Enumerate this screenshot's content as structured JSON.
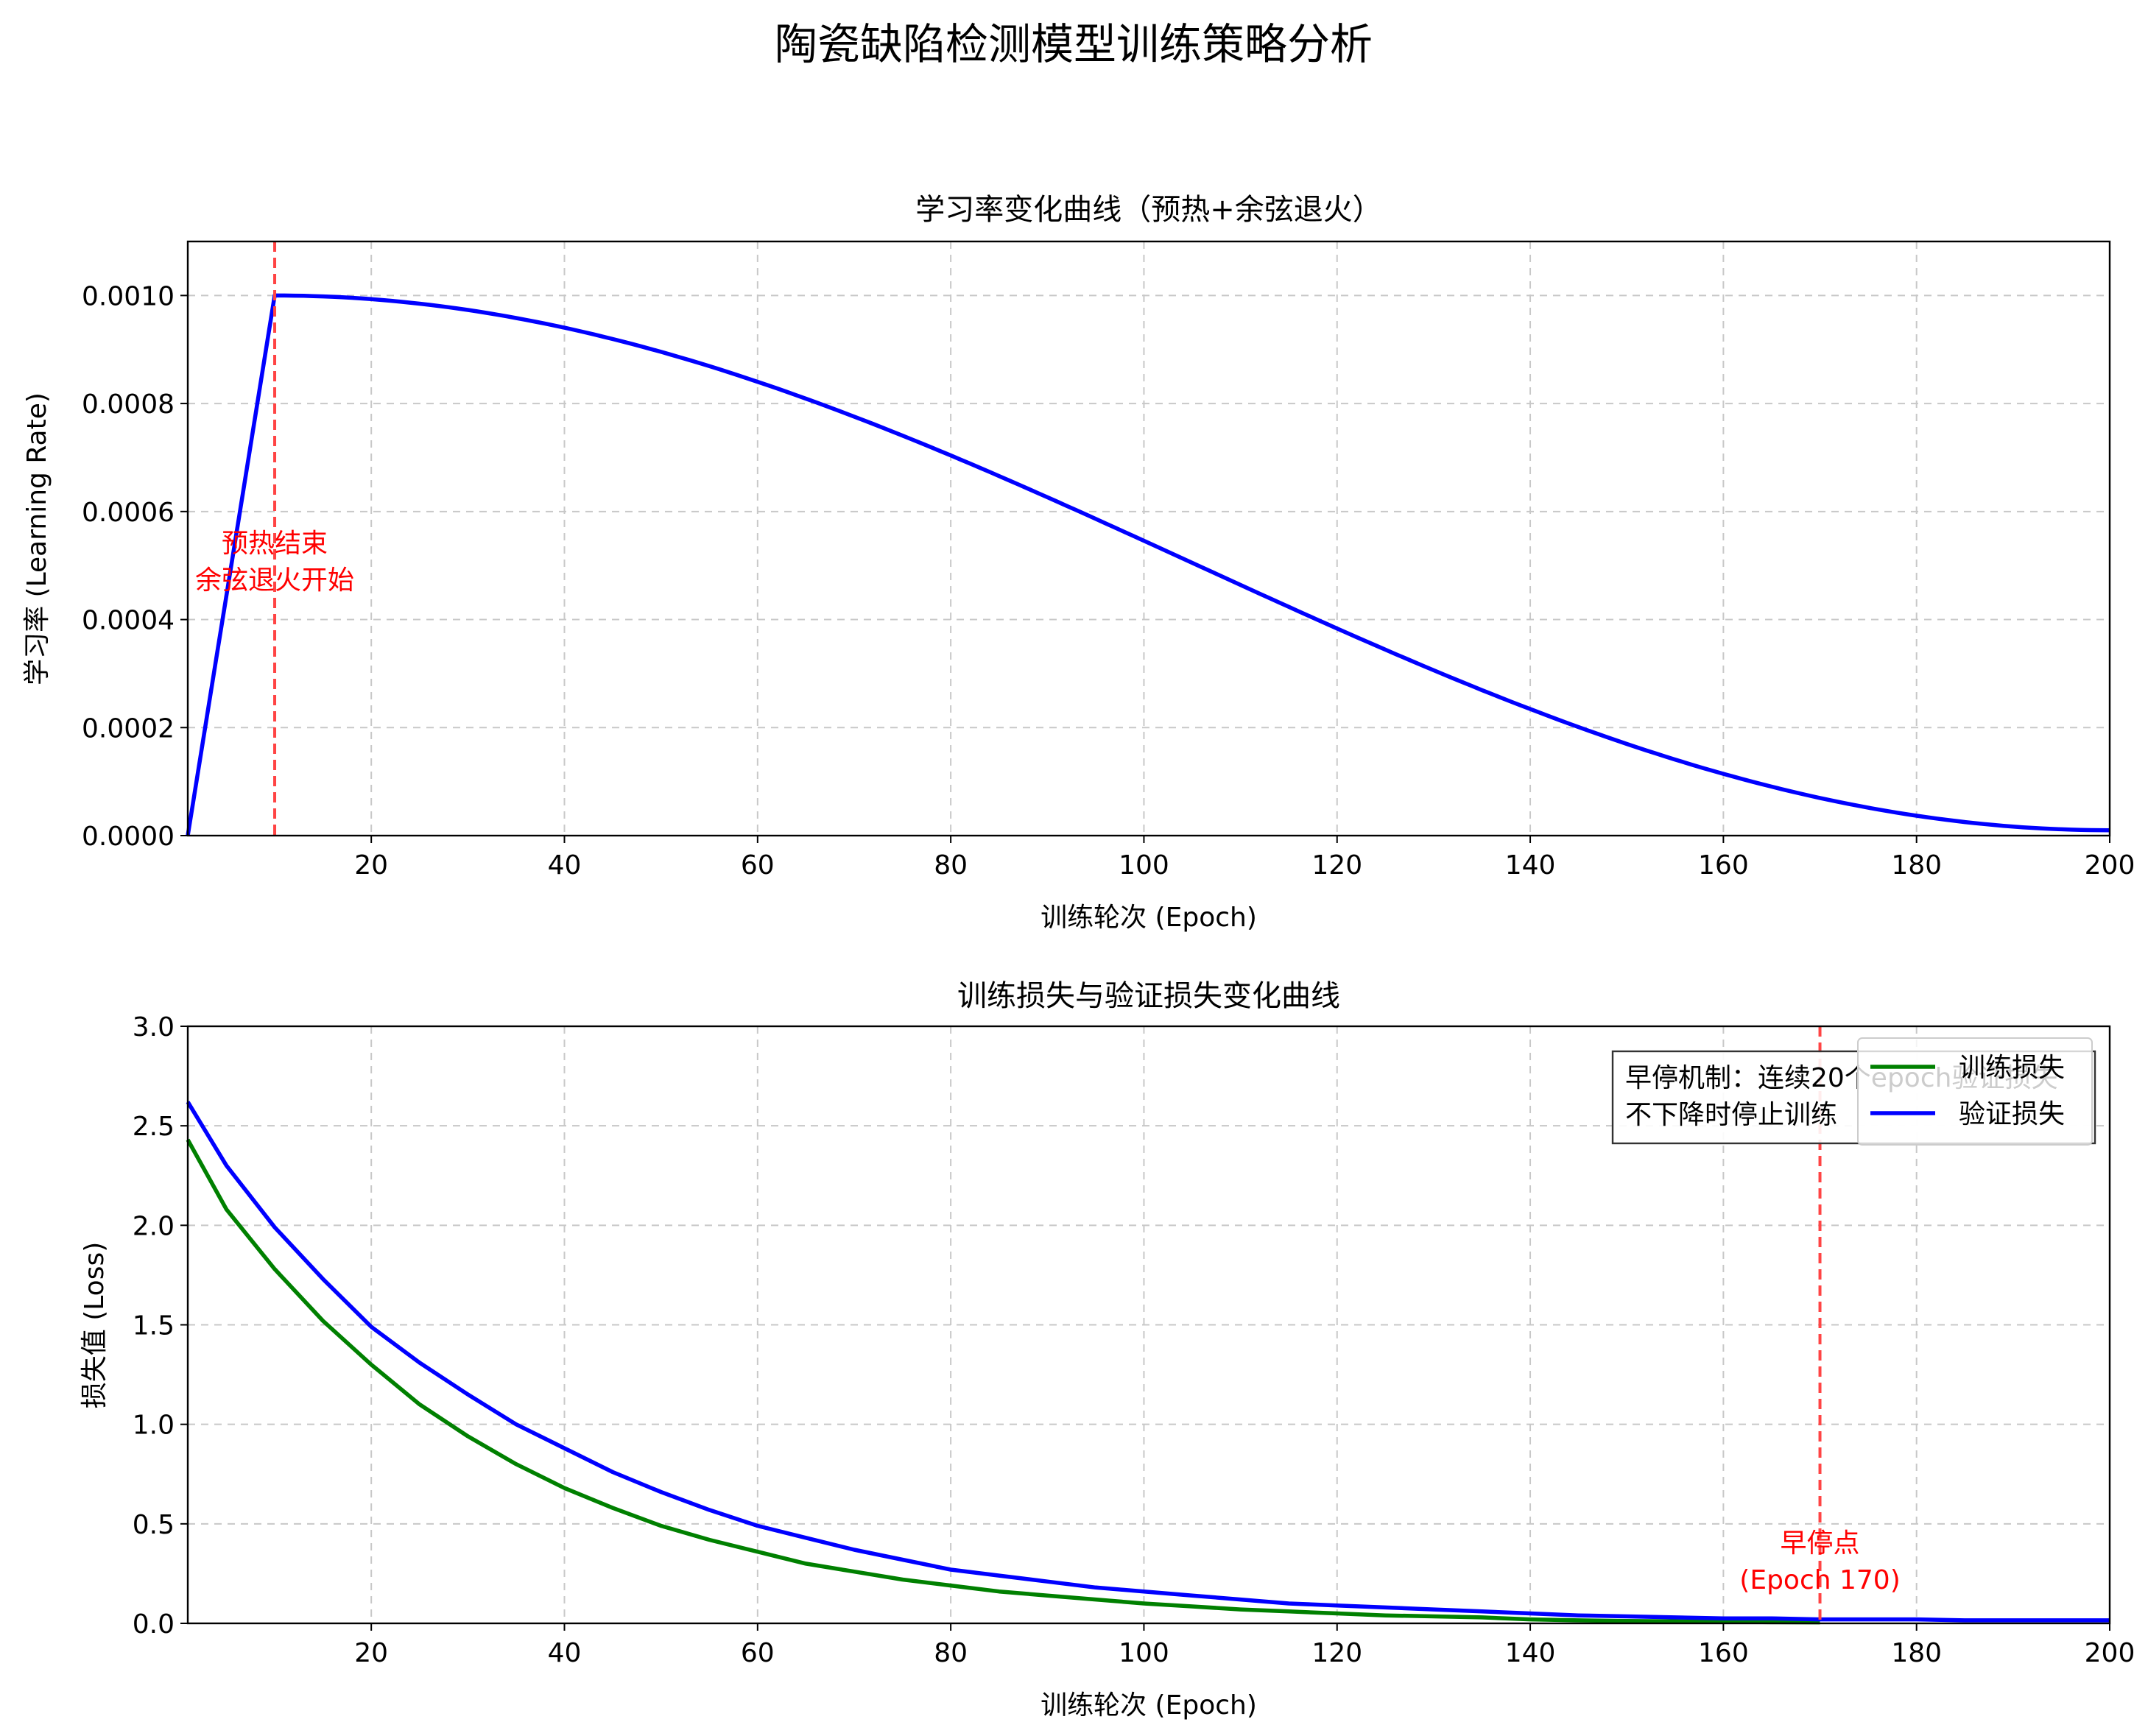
{
  "figure": {
    "title": "陶瓷缺陷检测模型训练策略分析"
  },
  "colors": {
    "lr_line": "#0000ff",
    "train_line": "#008000",
    "val_line": "#0000ff",
    "marker_line": "#ff4444",
    "annotation_text": "#ff0000",
    "grid": "#c8c8c8"
  },
  "chart_data": [
    {
      "type": "line",
      "title": "学习率变化曲线（预热+余弦退火）",
      "xlabel": "训练轮次 (Epoch)",
      "ylabel": "学习率 (Learning Rate)",
      "xlim": [
        1,
        200
      ],
      "ylim": [
        0,
        0.0011
      ],
      "xticks": [
        20,
        40,
        60,
        80,
        100,
        120,
        140,
        160,
        180,
        200
      ],
      "yticks": [
        "0.0000",
        "0.0002",
        "0.0004",
        "0.0006",
        "0.0008",
        "0.0010"
      ],
      "grid": true,
      "schedule": {
        "warmup_epochs": 10,
        "max_lr": 0.001,
        "min_lr": 1e-05
      },
      "series": [
        {
          "x": [
            1,
            10,
            15,
            20,
            25,
            30,
            35,
            40,
            45,
            50,
            55,
            60,
            65,
            70,
            75,
            80,
            85,
            90,
            95,
            100,
            105,
            110,
            115,
            120,
            125,
            130,
            135,
            140,
            145,
            150,
            155,
            160,
            165,
            170,
            175,
            180,
            185,
            190,
            195,
            200
          ],
          "values": [
            0.0,
            0.001,
            0.000998,
            0.000993,
            0.000985,
            0.000974,
            0.000959,
            0.000942,
            0.000922,
            0.000899,
            0.000874,
            0.000846,
            0.000816,
            0.000784,
            0.000751,
            0.000716,
            0.00068,
            0.000643,
            0.000605,
            0.000567,
            0.000529,
            0.000491,
            0.000453,
            0.000416,
            0.00038,
            0.000344,
            0.00031,
            0.000277,
            0.000246,
            0.000216,
            0.000188,
            0.000162,
            0.000138,
            0.000116,
            9.7e-05,
            8e-05,
            6.5e-05,
            5.3e-05,
            4.3e-05,
            1e-05
          ]
        }
      ],
      "markers": [
        {
          "x": 10,
          "label_lines": [
            "预热结束",
            "余弦退火开始"
          ]
        }
      ]
    },
    {
      "type": "line",
      "title": "训练损失与验证损失变化曲线",
      "xlabel": "训练轮次 (Epoch)",
      "ylabel": "损失值 (Loss)",
      "xlim": [
        1,
        200
      ],
      "ylim": [
        0,
        3.0
      ],
      "xticks": [
        20,
        40,
        60,
        80,
        100,
        120,
        140,
        160,
        180,
        200
      ],
      "yticks": [
        "0.0",
        "0.5",
        "1.0",
        "1.5",
        "2.0",
        "2.5",
        "3.0"
      ],
      "grid": true,
      "legend": "top-right",
      "series": [
        {
          "name": "训练损失",
          "x": [
            1,
            5,
            10,
            15,
            20,
            25,
            30,
            35,
            40,
            45,
            50,
            55,
            60,
            65,
            70,
            75,
            80,
            85,
            90,
            95,
            100,
            105,
            110,
            115,
            120,
            125,
            130,
            135,
            140,
            145,
            150,
            155,
            160,
            165,
            170
          ],
          "values": [
            2.43,
            2.08,
            1.78,
            1.52,
            1.3,
            1.1,
            0.94,
            0.8,
            0.68,
            0.58,
            0.49,
            0.42,
            0.36,
            0.3,
            0.26,
            0.22,
            0.19,
            0.16,
            0.14,
            0.12,
            0.1,
            0.085,
            0.07,
            0.06,
            0.05,
            0.04,
            0.035,
            0.03,
            0.02,
            0.015,
            0.012,
            0.01,
            0.008,
            0.006,
            0.005
          ]
        },
        {
          "name": "验证损失",
          "x": [
            1,
            5,
            10,
            15,
            20,
            25,
            30,
            35,
            40,
            45,
            50,
            55,
            60,
            65,
            70,
            75,
            80,
            85,
            90,
            95,
            100,
            105,
            110,
            115,
            120,
            125,
            130,
            135,
            140,
            145,
            150,
            155,
            160,
            165,
            170,
            175,
            180,
            185,
            190,
            195,
            200
          ],
          "values": [
            2.62,
            2.3,
            1.99,
            1.73,
            1.49,
            1.31,
            1.15,
            1.0,
            0.88,
            0.76,
            0.66,
            0.57,
            0.49,
            0.43,
            0.37,
            0.32,
            0.27,
            0.24,
            0.21,
            0.18,
            0.16,
            0.14,
            0.12,
            0.1,
            0.09,
            0.08,
            0.07,
            0.06,
            0.05,
            0.04,
            0.035,
            0.03,
            0.025,
            0.025,
            0.02,
            0.02,
            0.02,
            0.015,
            0.015,
            0.015,
            0.015
          ]
        }
      ],
      "markers": [
        {
          "x": 170,
          "label_lines": [
            "早停点",
            "(Epoch 170)"
          ]
        }
      ],
      "note_lines": [
        "早停机制：连续20个epoch验证损失",
        "不下降时停止训练"
      ]
    }
  ]
}
